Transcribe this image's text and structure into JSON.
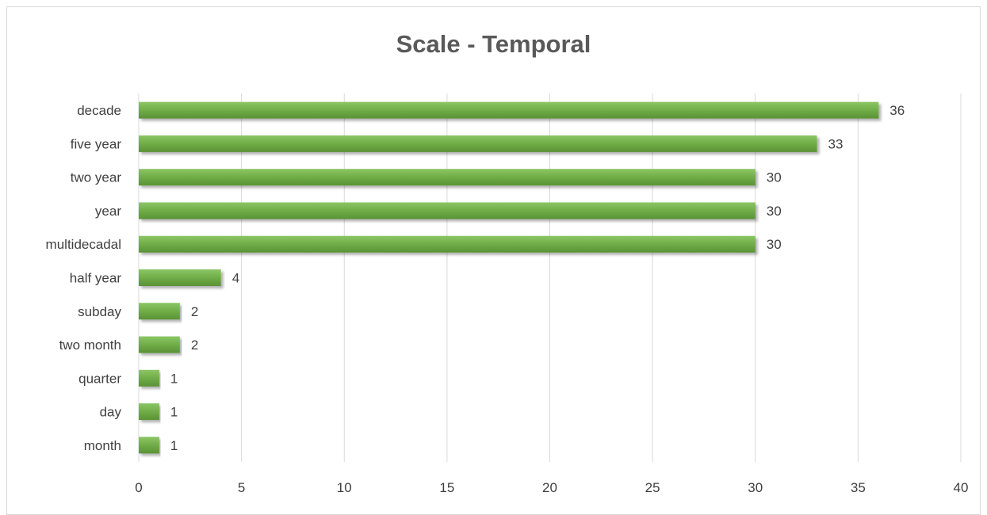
{
  "chart_data": {
    "type": "bar",
    "orientation": "horizontal",
    "title": "Scale - Temporal",
    "categories": [
      "decade",
      "five year",
      "two year",
      "year",
      "multidecadal",
      "half year",
      "subday",
      "two month",
      "quarter",
      "day",
      "month"
    ],
    "values": [
      36,
      33,
      30,
      30,
      30,
      4,
      2,
      2,
      1,
      1,
      1
    ],
    "x_ticks": [
      "0",
      "5",
      "10",
      "15",
      "20",
      "25",
      "30",
      "35",
      "40"
    ],
    "xlim": [
      0,
      40
    ],
    "xlabel": "",
    "ylabel": "",
    "grid": true,
    "legend": "none",
    "bar_color": "#70ad47",
    "bar_color_dark": "#5a9236"
  }
}
